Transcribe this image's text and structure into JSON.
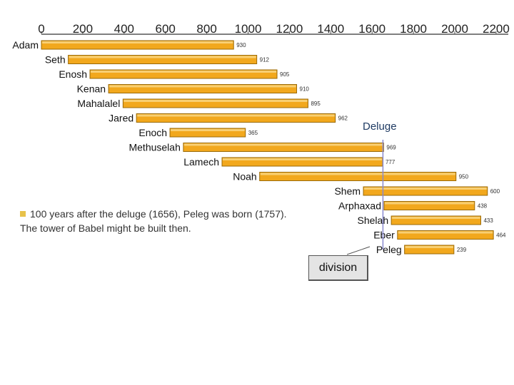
{
  "chart_data": {
    "type": "bar",
    "orientation": "horizontal-gantt",
    "xlim": [
      0,
      2300
    ],
    "x_ticks": [
      0,
      200,
      400,
      600,
      800,
      1000,
      1200,
      1400,
      1600,
      1800,
      2000,
      2200
    ],
    "series": [
      {
        "name": "Adam",
        "start": 0,
        "lifespan": 930
      },
      {
        "name": "Seth",
        "start": 130,
        "lifespan": 912
      },
      {
        "name": "Enosh",
        "start": 235,
        "lifespan": 905
      },
      {
        "name": "Kenan",
        "start": 325,
        "lifespan": 910
      },
      {
        "name": "Mahalalel",
        "start": 395,
        "lifespan": 895
      },
      {
        "name": "Jared",
        "start": 460,
        "lifespan": 962
      },
      {
        "name": "Enoch",
        "start": 622,
        "lifespan": 365
      },
      {
        "name": "Methuselah",
        "start": 687,
        "lifespan": 969
      },
      {
        "name": "Lamech",
        "start": 874,
        "lifespan": 777
      },
      {
        "name": "Noah",
        "start": 1056,
        "lifespan": 950
      },
      {
        "name": "Shem",
        "start": 1558,
        "lifespan": 600
      },
      {
        "name": "Arphaxad",
        "start": 1658,
        "lifespan": 438
      },
      {
        "name": "Shelah",
        "start": 1693,
        "lifespan": 433
      },
      {
        "name": "Eber",
        "start": 1723,
        "lifespan": 464
      },
      {
        "name": "Peleg",
        "start": 1757,
        "lifespan": 239
      }
    ],
    "annotations": {
      "deluge_label": "Deluge",
      "deluge_year": 1656
    },
    "colors": {
      "bar_fill": "#f2a81d",
      "bar_stroke": "#9a6a08",
      "deluge_line": "#8a8ad0",
      "axis": "#555555"
    }
  },
  "note": {
    "line1": "100 years after the deluge (1656), Peleg was born (1757).",
    "line2": "The tower of Babel might be built then."
  },
  "callout": {
    "label": "division"
  }
}
